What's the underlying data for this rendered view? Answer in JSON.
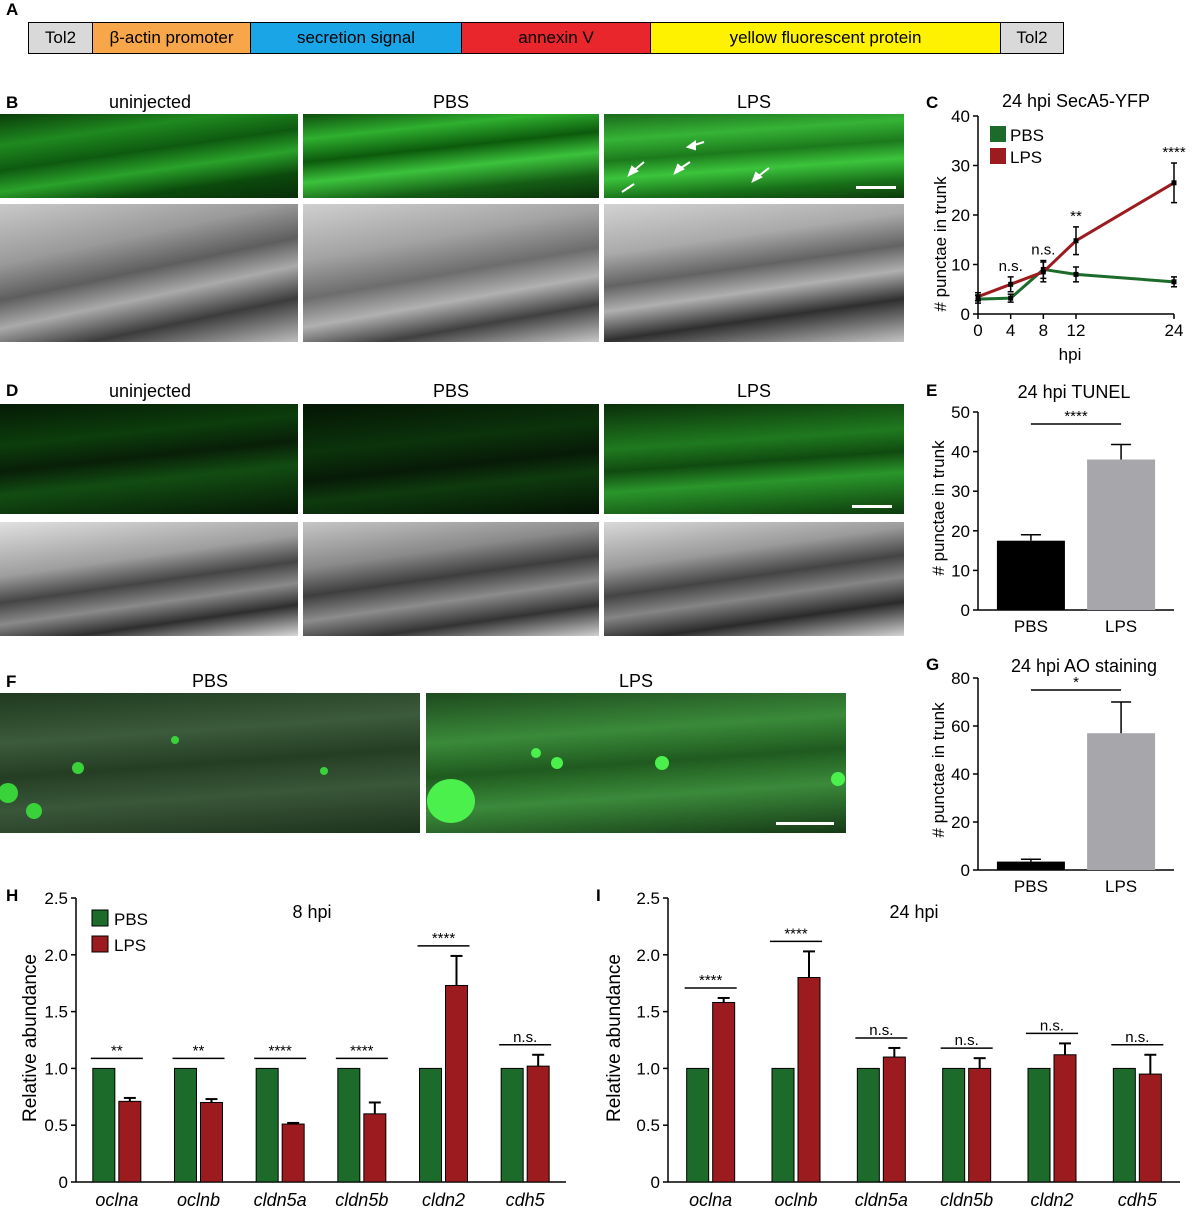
{
  "panel_letters": {
    "A": "A",
    "B": "B",
    "C": "C",
    "D": "D",
    "E": "E",
    "F": "F",
    "G": "G",
    "H": "H",
    "I": "I"
  },
  "construct": [
    {
      "label": "Tol2",
      "color": "#d9d9d9"
    },
    {
      "label": "β-actin promoter",
      "color": "#f7a64a"
    },
    {
      "label": "secretion signal",
      "color": "#1aa5e6"
    },
    {
      "label": "annexin V",
      "color": "#e8262b"
    },
    {
      "label": "yellow fluorescent protein",
      "color": "#fff200"
    },
    {
      "label": "Tol2",
      "color": "#d9d9d9"
    }
  ],
  "panel_b_titles": [
    "uninjected",
    "PBS",
    "LPS"
  ],
  "panel_d_titles": [
    "uninjected",
    "PBS",
    "LPS"
  ],
  "panel_f_titles": [
    "PBS",
    "LPS"
  ],
  "colors": {
    "pbs_green": "#1d6b2a",
    "lps_red": "#9b1b1e",
    "bar_black": "#000000",
    "bar_grey": "#a6a6ab"
  },
  "chart_data": [
    {
      "id": "C",
      "type": "line",
      "title": "24 hpi SecA5-YFP",
      "xlabel": "hpi",
      "ylabel": "# punctae in trunk",
      "x": [
        0,
        4,
        8,
        12,
        24
      ],
      "xlim": [
        0,
        24
      ],
      "ylim": [
        0,
        40
      ],
      "yticks": [
        0,
        10,
        20,
        30,
        40
      ],
      "series": [
        {
          "name": "PBS",
          "values": [
            3,
            3.2,
            9,
            8,
            6.5
          ],
          "err": [
            0.8,
            0.8,
            1.8,
            1.5,
            1
          ]
        },
        {
          "name": "LPS",
          "values": [
            3.5,
            6,
            8.5,
            14.8,
            26.5
          ],
          "err": [
            0.8,
            1.5,
            2,
            2.8,
            4
          ]
        }
      ],
      "annotations": [
        {
          "x": 4,
          "text": "n.s."
        },
        {
          "x": 8,
          "text": "n.s."
        },
        {
          "x": 12,
          "text": "**"
        },
        {
          "x": 24,
          "text": "****"
        }
      ],
      "legend": "top-left"
    },
    {
      "id": "E",
      "type": "bar",
      "title": "24 hpi TUNEL",
      "ylabel": "# punctae in trunk",
      "categories": [
        "PBS",
        "LPS"
      ],
      "values": [
        17.5,
        38
      ],
      "err": [
        1.5,
        3.8
      ],
      "ylim": [
        0,
        50
      ],
      "yticks": [
        0,
        10,
        20,
        30,
        40,
        50
      ],
      "significance": "****"
    },
    {
      "id": "G",
      "type": "bar",
      "title": "24 hpi AO staining",
      "ylabel": "# punctae in trunk",
      "categories": [
        "PBS",
        "LPS"
      ],
      "values": [
        3.5,
        57
      ],
      "err": [
        1,
        13
      ],
      "ylim": [
        0,
        80
      ],
      "yticks": [
        0,
        20,
        40,
        60,
        80
      ],
      "significance": "*"
    },
    {
      "id": "H",
      "type": "bar",
      "title": "8 hpi",
      "ylabel": "Relative abundance",
      "categories": [
        "oclna",
        "oclnb",
        "cldn5a",
        "cldn5b",
        "cldn2",
        "cdh5"
      ],
      "ylim": [
        0,
        2.5
      ],
      "yticks": [
        "0",
        "0.5",
        "1.0",
        "1.5",
        "2.0",
        "2.5"
      ],
      "series": [
        {
          "name": "PBS",
          "values": [
            1,
            1,
            1,
            1,
            1,
            1
          ]
        },
        {
          "name": "LPS",
          "values": [
            0.71,
            0.7,
            0.51,
            0.6,
            1.73,
            1.02
          ],
          "err": [
            0.03,
            0.03,
            0.01,
            0.1,
            0.26,
            0.1
          ]
        }
      ],
      "significance": [
        "**",
        "**",
        "****",
        "****",
        "****",
        "n.s."
      ],
      "legend": "top-left"
    },
    {
      "id": "I",
      "type": "bar",
      "title": "24 hpi",
      "ylabel": "Relative abundance",
      "categories": [
        "oclna",
        "oclnb",
        "cldn5a",
        "cldn5b",
        "cldn2",
        "cdh5"
      ],
      "ylim": [
        0,
        2.5
      ],
      "yticks": [
        "0",
        "0.5",
        "1.0",
        "1.5",
        "2.0",
        "2.5"
      ],
      "series": [
        {
          "name": "PBS",
          "values": [
            1,
            1,
            1,
            1,
            1,
            1
          ]
        },
        {
          "name": "LPS",
          "values": [
            1.58,
            1.8,
            1.1,
            1.0,
            1.12,
            0.95
          ],
          "err": [
            0.04,
            0.23,
            0.08,
            0.09,
            0.1,
            0.17
          ]
        }
      ],
      "significance": [
        "****",
        "****",
        "n.s.",
        "n.s.",
        "n.s.",
        "n.s."
      ]
    }
  ]
}
